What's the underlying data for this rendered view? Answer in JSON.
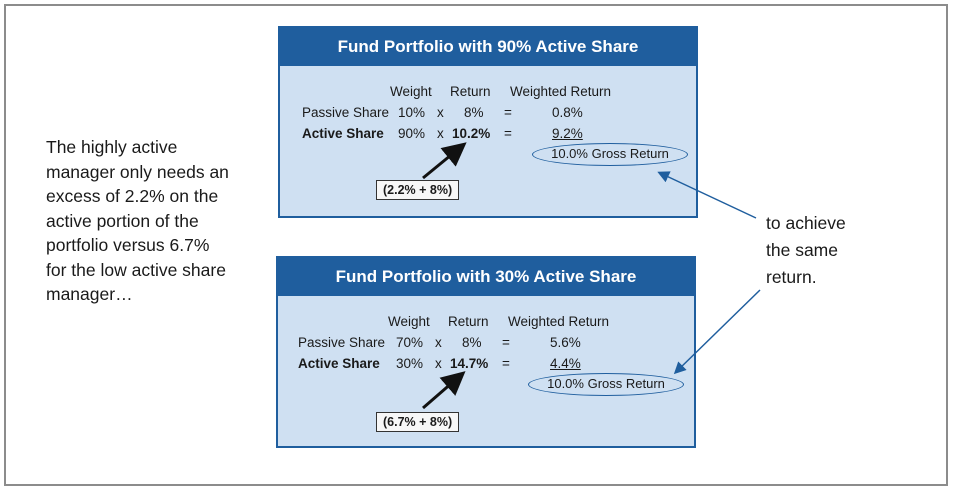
{
  "left_note": {
    "lines": [
      "The highly active",
      "manager only needs an",
      "excess of 2.2% on the",
      "active portion of the",
      "portfolio versus 6.7%",
      "for the low active share",
      "manager…"
    ]
  },
  "right_note": {
    "lines": [
      "to achieve",
      "the same",
      "return."
    ]
  },
  "panels": [
    {
      "title": "Fund Portfolio with 90% Active Share",
      "headers": {
        "weight": "Weight",
        "return": "Return",
        "weighted": "Weighted Return"
      },
      "rows": [
        {
          "label": "Passive Share",
          "weight": "10%",
          "x": "x",
          "ret": "8%",
          "eq": "=",
          "weighted": "0.8%"
        },
        {
          "label": "Active Share",
          "weight": "90%",
          "x": "x",
          "ret": "10.2%",
          "eq": "=",
          "weighted": "9.2%"
        }
      ],
      "gross": "10.0% Gross Return",
      "calc": "(2.2% + 8%)"
    },
    {
      "title": "Fund Portfolio with 30% Active Share",
      "headers": {
        "weight": "Weight",
        "return": "Return",
        "weighted": "Weighted Return"
      },
      "rows": [
        {
          "label": "Passive Share",
          "weight": "70%",
          "x": "x",
          "ret": "8%",
          "eq": "=",
          "weighted": "5.6%"
        },
        {
          "label": "Active Share",
          "weight": "30%",
          "x": "x",
          "ret": "14.7%",
          "eq": "=",
          "weighted": "4.4%"
        }
      ],
      "gross": "10.0% Gross Return",
      "calc": "(6.7% + 8%)"
    }
  ],
  "colors": {
    "panel_header": "#1f5e9e",
    "panel_bg": "#cfe0f2",
    "arrow": "#1f5e9e",
    "frame": "#8c8c8c"
  }
}
